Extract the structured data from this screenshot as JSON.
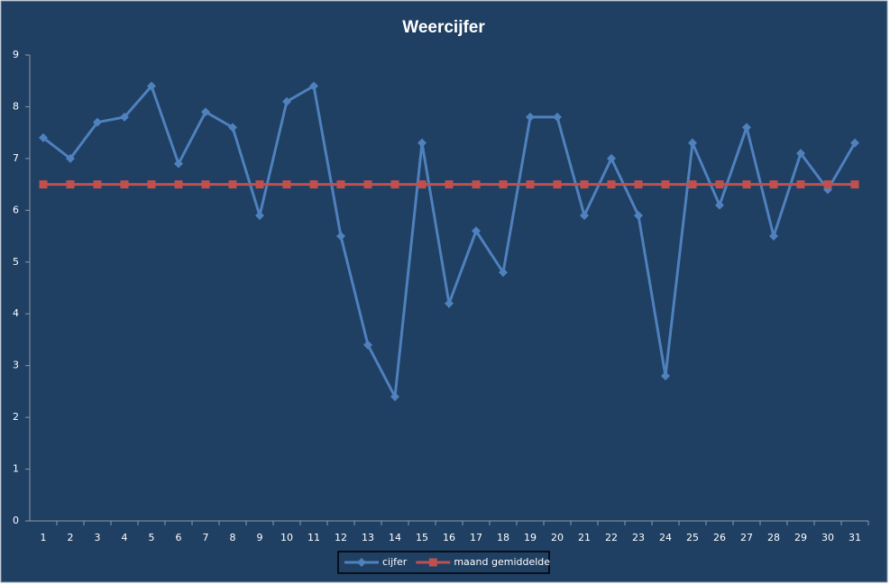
{
  "chart_data": {
    "type": "line",
    "title": "Weercijfer",
    "categories": [
      1,
      2,
      3,
      4,
      5,
      6,
      7,
      8,
      9,
      10,
      11,
      12,
      13,
      14,
      15,
      16,
      17,
      18,
      19,
      20,
      21,
      22,
      23,
      24,
      25,
      26,
      27,
      28,
      29,
      30,
      31
    ],
    "series": [
      {
        "name": "cijfer",
        "color": "#4f81bd",
        "marker": "diamond",
        "values": [
          7.4,
          7.0,
          7.7,
          7.8,
          8.4,
          6.9,
          7.9,
          7.6,
          5.9,
          8.1,
          8.4,
          5.5,
          3.4,
          2.4,
          7.3,
          4.2,
          5.6,
          4.8,
          7.8,
          7.8,
          5.9,
          7.0,
          5.9,
          2.8,
          7.3,
          6.1,
          7.6,
          5.5,
          7.1,
          6.4,
          7.3
        ]
      },
      {
        "name": "maand gemiddelde",
        "color": "#c0504d",
        "marker": "square",
        "values": [
          6.5,
          6.5,
          6.5,
          6.5,
          6.5,
          6.5,
          6.5,
          6.5,
          6.5,
          6.5,
          6.5,
          6.5,
          6.5,
          6.5,
          6.5,
          6.5,
          6.5,
          6.5,
          6.5,
          6.5,
          6.5,
          6.5,
          6.5,
          6.5,
          6.5,
          6.5,
          6.5,
          6.5,
          6.5,
          6.5,
          6.5
        ]
      }
    ],
    "ylim": [
      0,
      9
    ],
    "yticks": [
      0,
      1,
      2,
      3,
      4,
      5,
      6,
      7,
      8,
      9
    ],
    "grid": false,
    "legend": "bottom"
  }
}
